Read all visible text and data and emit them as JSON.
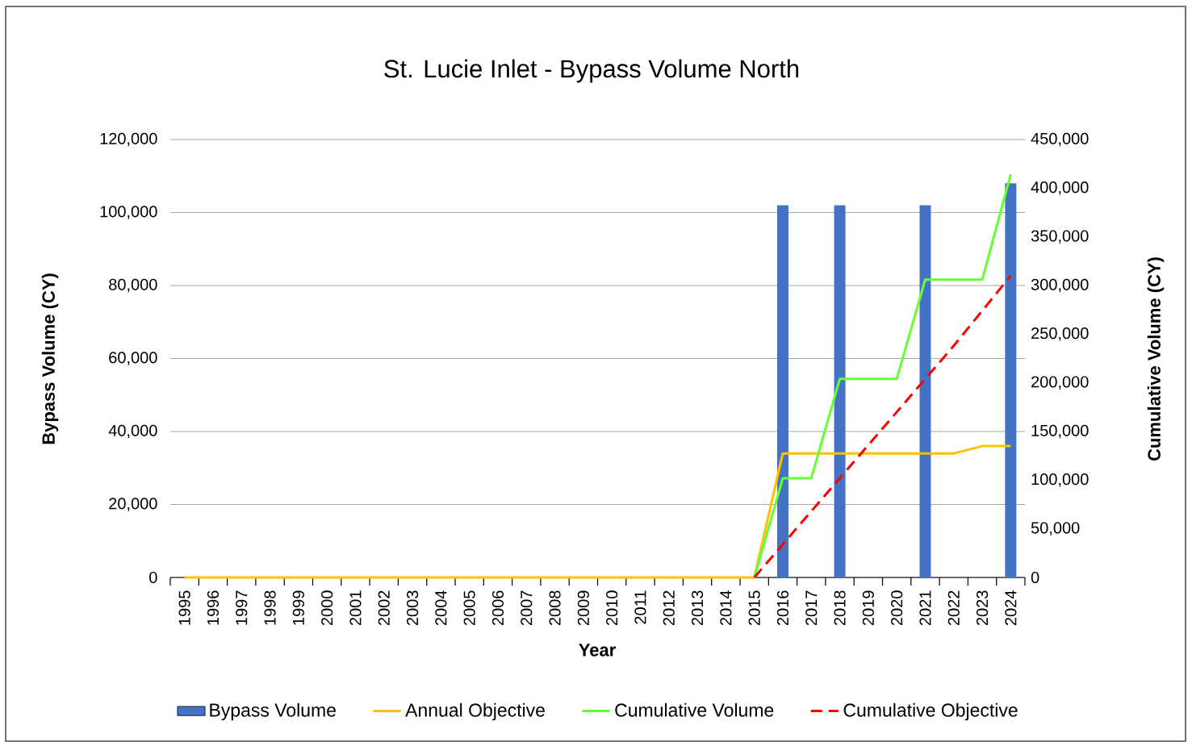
{
  "chart_data": {
    "type": "bar",
    "title": "St. Lucie Inlet - Bypass Volume North",
    "xlabel": "Year",
    "ylabel": "Bypass Volume (CY)",
    "y2label": "Cumulative Volume (CY)",
    "categories": [
      "1995",
      "1996",
      "1997",
      "1998",
      "1999",
      "2000",
      "2001",
      "2002",
      "2003",
      "2004",
      "2005",
      "2006",
      "2007",
      "2008",
      "2009",
      "2010",
      "2011",
      "2012",
      "2013",
      "2014",
      "2015",
      "2016",
      "2017",
      "2018",
      "2019",
      "2020",
      "2021",
      "2022",
      "2023",
      "2024"
    ],
    "series": [
      {
        "name": "Bypass Volume",
        "color": "#4472c4",
        "values": [
          0,
          0,
          0,
          0,
          0,
          0,
          0,
          0,
          0,
          0,
          0,
          0,
          0,
          0,
          0,
          0,
          0,
          0,
          0,
          0,
          0,
          102000,
          0,
          102000,
          0,
          0,
          102000,
          0,
          0,
          108000
        ]
      },
      {
        "name": "Annual Objective",
        "type": "line",
        "color": "#ffc000",
        "line_style": "solid",
        "values": [
          0,
          0,
          0,
          0,
          0,
          0,
          0,
          0,
          0,
          0,
          0,
          0,
          0,
          0,
          0,
          0,
          0,
          0,
          0,
          0,
          0,
          34000,
          34000,
          34000,
          34000,
          34000,
          34000,
          34000,
          36000,
          36000
        ]
      },
      {
        "name": "Cumulative Volume",
        "type": "line",
        "axis": "y2",
        "color": "#66ff33",
        "line_style": "solid",
        "values": [
          null,
          null,
          null,
          null,
          null,
          null,
          null,
          null,
          null,
          null,
          null,
          null,
          null,
          null,
          null,
          null,
          null,
          null,
          null,
          null,
          0,
          102000,
          102000,
          204000,
          204000,
          204000,
          306000,
          306000,
          306000,
          414000
        ]
      },
      {
        "name": "Cumulative Objective",
        "type": "line",
        "axis": "y2",
        "color": "#ff0000",
        "line_style": "dashed",
        "values": [
          null,
          null,
          null,
          null,
          null,
          null,
          null,
          null,
          null,
          null,
          null,
          null,
          null,
          null,
          null,
          null,
          null,
          null,
          null,
          null,
          0,
          34000,
          68000,
          102000,
          136000,
          170000,
          204000,
          238000,
          274000,
          310000
        ]
      }
    ],
    "ylim": [
      0,
      120000
    ],
    "yticks": [
      {
        "value": 0,
        "label": "0"
      },
      {
        "value": 20000,
        "label": "20,000"
      },
      {
        "value": 40000,
        "label": "40,000"
      },
      {
        "value": 60000,
        "label": "60,000"
      },
      {
        "value": 80000,
        "label": "80,000"
      },
      {
        "value": 100000,
        "label": "100,000"
      },
      {
        "value": 120000,
        "label": "120,000"
      }
    ],
    "y2lim": [
      0,
      450000
    ],
    "y2ticks": [
      {
        "value": 0,
        "label": "0"
      },
      {
        "value": 50000,
        "label": "50,000"
      },
      {
        "value": 100000,
        "label": "100,000"
      },
      {
        "value": 150000,
        "label": "150,000"
      },
      {
        "value": 200000,
        "label": "200,000"
      },
      {
        "value": 250000,
        "label": "250,000"
      },
      {
        "value": 300000,
        "label": "300,000"
      },
      {
        "value": 350000,
        "label": "350,000"
      },
      {
        "value": 400000,
        "label": "400,000"
      },
      {
        "value": 450000,
        "label": "450,000"
      }
    ],
    "grid": "y",
    "legend": "bottom",
    "marker": "none"
  }
}
